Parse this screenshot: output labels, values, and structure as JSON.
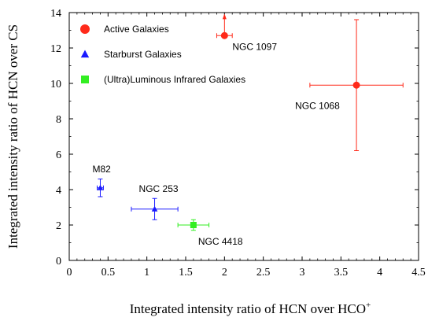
{
  "chart_data": {
    "type": "scatter",
    "xlabel": "Integrated intensity ratio of HCN over HCO",
    "xlabel_sup": "+",
    "ylabel": "Integrated intensity ratio of HCN over CS",
    "xlim": [
      0,
      4.5
    ],
    "ylim": [
      0,
      14
    ],
    "xticks": [
      "0",
      "0.5",
      "1",
      "1.5",
      "2",
      "2.5",
      "3",
      "3.5",
      "4",
      "4.5"
    ],
    "yticks": [
      "0",
      "2",
      "4",
      "6",
      "8",
      "10",
      "12",
      "14"
    ],
    "grid": false,
    "legend_position": "top-left",
    "series": [
      {
        "name": "Active Galaxies",
        "marker": "circle",
        "color": "#ff2a1a",
        "points": [
          {
            "x": 2.0,
            "y": 12.7,
            "xerr": [
              0.1,
              0.1
            ],
            "yerr_up": "lower-limit",
            "label": "NGC 1097"
          },
          {
            "x": 3.7,
            "y": 9.9,
            "xerr": [
              0.6,
              0.6
            ],
            "yerr": [
              3.7,
              3.7
            ],
            "label": "NGC 1068"
          }
        ]
      },
      {
        "name": "Starburst Galaxies",
        "marker": "triangle",
        "color": "#1a1aff",
        "points": [
          {
            "x": 0.4,
            "y": 4.1,
            "xerr": [
              0.04,
              0.04
            ],
            "yerr": [
              0.5,
              0.5
            ],
            "label": "M82"
          },
          {
            "x": 1.1,
            "y": 2.9,
            "xerr": [
              0.3,
              0.3
            ],
            "yerr": [
              0.6,
              0.6
            ],
            "label": "NGC 253"
          }
        ]
      },
      {
        "name": "(Ultra)Luminous Infrared Galaxies",
        "marker": "square",
        "color": "#33ee22",
        "points": [
          {
            "x": 1.6,
            "y": 2.0,
            "xerr": [
              0.2,
              0.2
            ],
            "yerr": [
              0.3,
              0.3
            ],
            "label": "NGC 4418"
          }
        ]
      }
    ]
  }
}
